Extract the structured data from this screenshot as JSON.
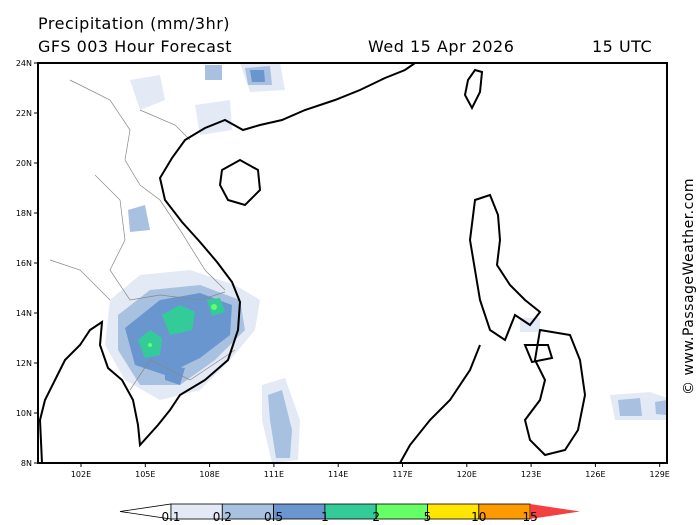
{
  "header": {
    "title": "Precipitation (mm/3hr)",
    "subtitle": "GFS 003 Hour Forecast",
    "date": "Wed 15 Apr 2026",
    "time": "15 UTC"
  },
  "map": {
    "region": "South China Sea / Indochina / Philippines",
    "lat_labels": [
      "24N",
      "22N",
      "20N",
      "18N",
      "16N",
      "14N",
      "12N",
      "10N",
      "8N"
    ],
    "lon_labels": [
      "102E",
      "105E",
      "108E",
      "111E",
      "114E",
      "117E",
      "120E",
      "123E",
      "126E",
      "129E"
    ],
    "credit": "© www.PassageWeather.com"
  },
  "colorbar": {
    "labels": [
      "0.1",
      "0.2",
      "0.5",
      "1",
      "2",
      "5",
      "10",
      "15"
    ],
    "colors": [
      "#ffffff",
      "#e3e9f5",
      "#a8c1e0",
      "#6a96d0",
      "#33cc99",
      "#66ff66",
      "#ffe600",
      "#ff9900",
      "#f44040"
    ]
  }
}
